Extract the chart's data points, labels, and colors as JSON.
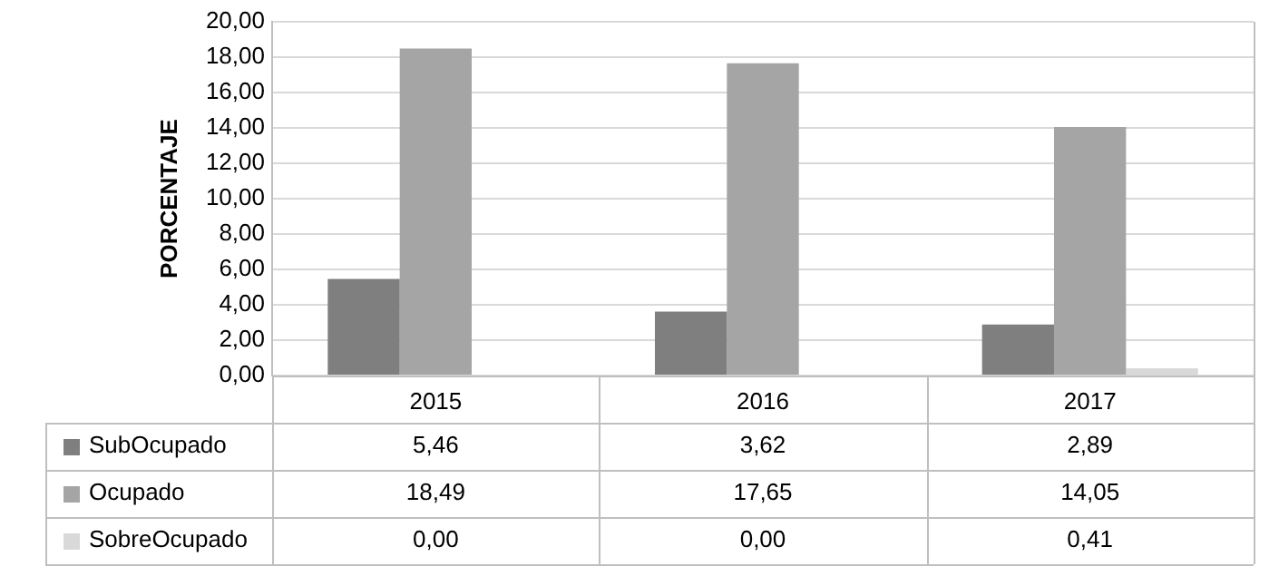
{
  "chart_data": {
    "type": "bar",
    "ylabel": "PORCENTAJE",
    "categories": [
      "2015",
      "2016",
      "2017"
    ],
    "series": [
      {
        "name": "SubOcupado",
        "color": "#7f7f7f",
        "values": [
          5.46,
          3.62,
          2.89
        ],
        "value_labels": [
          "5,46",
          "3,62",
          "2,89"
        ]
      },
      {
        "name": "Ocupado",
        "color": "#a5a5a5",
        "values": [
          18.49,
          17.65,
          14.05
        ],
        "value_labels": [
          "18,49",
          "17,65",
          "14,05"
        ]
      },
      {
        "name": "SobreOcupado",
        "color": "#d9d9d9",
        "values": [
          0,
          0,
          0.41
        ],
        "value_labels": [
          "0,00",
          "0,00",
          "0,41"
        ]
      }
    ],
    "ylim": [
      0,
      20
    ],
    "yticks": [
      {
        "value": 0,
        "label": "0,00"
      },
      {
        "value": 2,
        "label": "2,00"
      },
      {
        "value": 4,
        "label": "4,00"
      },
      {
        "value": 6,
        "label": "6,00"
      },
      {
        "value": 8,
        "label": "8,00"
      },
      {
        "value": 10,
        "label": "10,00"
      },
      {
        "value": 12,
        "label": "12,00"
      },
      {
        "value": 14,
        "label": "14,00"
      },
      {
        "value": 16,
        "label": "16,00"
      },
      {
        "value": 18,
        "label": "18,00"
      },
      {
        "value": 20,
        "label": "20,00"
      }
    ],
    "grid": "y",
    "legend": "bottom"
  }
}
